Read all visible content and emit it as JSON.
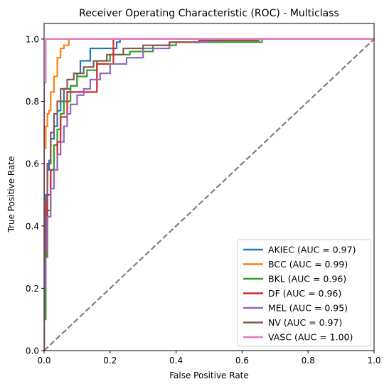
{
  "chart_data": {
    "type": "line",
    "title": "Receiver Operating Characteristic (ROC) - Multiclass",
    "xlabel": "False Positive Rate",
    "ylabel": "True Positive Rate",
    "xlim": [
      0,
      1
    ],
    "ylim": [
      0,
      1.05
    ],
    "xticks": [
      0.0,
      0.2,
      0.4,
      0.6,
      0.8,
      1.0
    ],
    "yticks": [
      0.0,
      0.2,
      0.4,
      0.6,
      0.8,
      1.0
    ],
    "tick_labels_x": [
      "0.0",
      "0.2",
      "0.4",
      "0.6",
      "0.8",
      "1.0"
    ],
    "tick_labels_y": [
      "0.0",
      "0.2",
      "0.4",
      "0.6",
      "0.8",
      "1.0"
    ],
    "grid": false,
    "legend_position": "lower-right",
    "diagonal": {
      "x": [
        0,
        1
      ],
      "y": [
        0,
        1
      ],
      "color": "#808080",
      "style": "dashed"
    },
    "series": [
      {
        "name": "AKIEC (AUC = 0.97)",
        "color": "#1f77b4",
        "x": [
          0,
          0,
          0.005,
          0.005,
          0.01,
          0.01,
          0.015,
          0.015,
          0.02,
          0.02,
          0.03,
          0.03,
          0.04,
          0.04,
          0.05,
          0.05,
          0.06,
          0.06,
          0.08,
          0.08,
          0.1,
          0.1,
          0.11,
          0.11,
          0.14,
          0.14,
          0.22,
          0.22,
          0.23,
          0.23,
          1.0
        ],
        "y": [
          0,
          0.11,
          0.11,
          0.5,
          0.5,
          0.58,
          0.58,
          0.61,
          0.61,
          0.68,
          0.68,
          0.72,
          0.72,
          0.77,
          0.77,
          0.8,
          0.8,
          0.84,
          0.84,
          0.85,
          0.85,
          0.89,
          0.89,
          0.93,
          0.93,
          0.97,
          0.97,
          0.99,
          0.99,
          1.0,
          1.0
        ]
      },
      {
        "name": "BCC (AUC = 0.99)",
        "color": "#ff7f0e",
        "x": [
          0,
          0,
          0.005,
          0.005,
          0.01,
          0.01,
          0.015,
          0.015,
          0.02,
          0.02,
          0.03,
          0.03,
          0.04,
          0.04,
          0.05,
          0.05,
          0.06,
          0.06,
          0.075,
          0.075,
          1.0
        ],
        "y": [
          0,
          0.65,
          0.65,
          0.72,
          0.72,
          0.76,
          0.76,
          0.77,
          0.77,
          0.83,
          0.83,
          0.88,
          0.88,
          0.94,
          0.94,
          0.97,
          0.97,
          0.98,
          0.98,
          1.0,
          1.0
        ]
      },
      {
        "name": "BKL (AUC = 0.96)",
        "color": "#2ca02c",
        "x": [
          0,
          0,
          0.005,
          0.005,
          0.01,
          0.01,
          0.02,
          0.02,
          0.03,
          0.03,
          0.04,
          0.04,
          0.05,
          0.05,
          0.06,
          0.06,
          0.08,
          0.08,
          0.1,
          0.1,
          0.13,
          0.13,
          0.16,
          0.16,
          0.2,
          0.2,
          0.26,
          0.26,
          0.33,
          0.33,
          0.4,
          0.4,
          0.66,
          0.66,
          1.0
        ],
        "y": [
          0,
          0.1,
          0.1,
          0.3,
          0.3,
          0.45,
          0.45,
          0.58,
          0.58,
          0.66,
          0.66,
          0.71,
          0.71,
          0.76,
          0.76,
          0.8,
          0.8,
          0.85,
          0.85,
          0.88,
          0.88,
          0.9,
          0.9,
          0.93,
          0.93,
          0.95,
          0.95,
          0.96,
          0.96,
          0.98,
          0.98,
          0.99,
          0.99,
          1.0,
          1.0
        ]
      },
      {
        "name": "DF (AUC = 0.96)",
        "color": "#d62728",
        "x": [
          0,
          0,
          0.01,
          0.01,
          0.02,
          0.02,
          0.04,
          0.04,
          0.05,
          0.05,
          0.07,
          0.07,
          0.09,
          0.09,
          0.12,
          0.12,
          0.16,
          0.16,
          0.21,
          0.21,
          1.0
        ],
        "y": [
          0,
          0.42,
          0.42,
          0.5,
          0.5,
          0.58,
          0.58,
          0.67,
          0.67,
          0.75,
          0.75,
          0.83,
          0.83,
          0.83,
          0.83,
          0.83,
          0.83,
          0.92,
          0.92,
          1.0,
          1.0
        ]
      },
      {
        "name": "MEL (AUC = 0.95)",
        "color": "#9467bd",
        "x": [
          0,
          0,
          0.005,
          0.005,
          0.01,
          0.01,
          0.02,
          0.02,
          0.03,
          0.03,
          0.04,
          0.04,
          0.05,
          0.05,
          0.06,
          0.06,
          0.07,
          0.07,
          0.08,
          0.08,
          0.1,
          0.1,
          0.12,
          0.12,
          0.14,
          0.14,
          0.17,
          0.17,
          0.2,
          0.2,
          0.25,
          0.25,
          0.3,
          0.3,
          0.38,
          0.38,
          0.5,
          0.5,
          1.0
        ],
        "y": [
          0,
          0.2,
          0.2,
          0.32,
          0.32,
          0.43,
          0.43,
          0.52,
          0.52,
          0.58,
          0.58,
          0.63,
          0.63,
          0.67,
          0.67,
          0.72,
          0.72,
          0.76,
          0.76,
          0.79,
          0.79,
          0.82,
          0.82,
          0.84,
          0.84,
          0.87,
          0.87,
          0.89,
          0.89,
          0.92,
          0.92,
          0.94,
          0.94,
          0.97,
          0.97,
          0.99,
          0.99,
          1.0,
          1.0
        ]
      },
      {
        "name": "NV (AUC = 0.97)",
        "color": "#8c564b",
        "x": [
          0,
          0,
          0.005,
          0.005,
          0.01,
          0.01,
          0.02,
          0.02,
          0.03,
          0.03,
          0.04,
          0.04,
          0.05,
          0.05,
          0.07,
          0.07,
          0.09,
          0.09,
          0.12,
          0.12,
          0.15,
          0.15,
          0.19,
          0.19,
          0.24,
          0.24,
          0.3,
          0.3,
          0.38,
          0.38,
          0.47,
          0.47,
          0.65,
          0.65,
          1.0
        ],
        "y": [
          0,
          0.3,
          0.3,
          0.48,
          0.48,
          0.6,
          0.6,
          0.7,
          0.7,
          0.76,
          0.76,
          0.8,
          0.8,
          0.84,
          0.84,
          0.87,
          0.87,
          0.89,
          0.89,
          0.91,
          0.91,
          0.93,
          0.93,
          0.95,
          0.95,
          0.97,
          0.97,
          0.98,
          0.98,
          0.99,
          0.99,
          0.995,
          0.995,
          1.0,
          1.0
        ]
      },
      {
        "name": "VASC (AUC = 1.00)",
        "color": "#e377c2",
        "x": [
          0,
          0,
          0.005,
          0.005,
          1.0
        ],
        "y": [
          0,
          0.86,
          0.86,
          1.0,
          1.0
        ]
      }
    ]
  }
}
